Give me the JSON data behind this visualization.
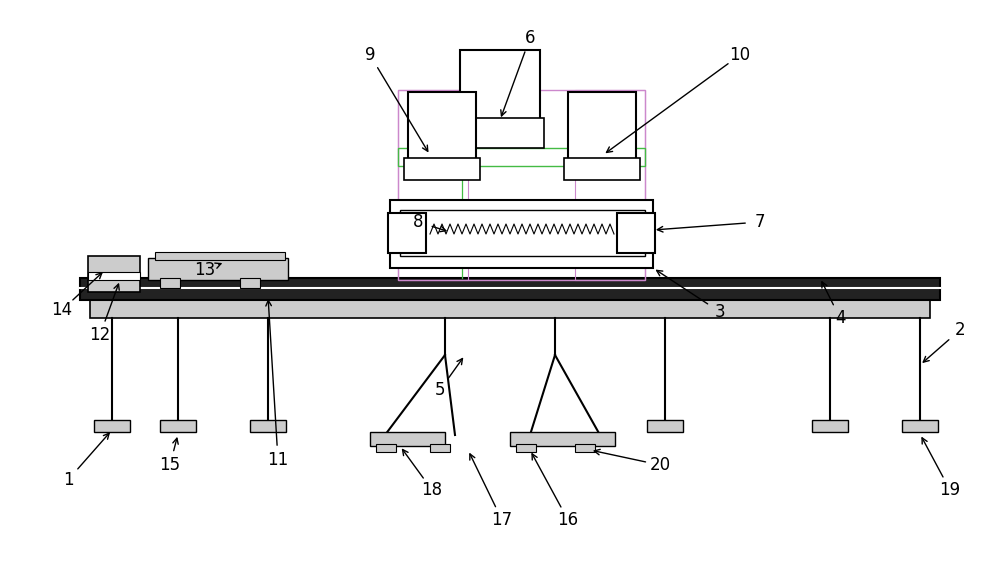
{
  "bg_color": "#ffffff",
  "lc": "#000000",
  "lgc": "#cccccc",
  "pc": "#cc88cc",
  "gnc": "#44bb44",
  "fig_width": 10.0,
  "fig_height": 5.8
}
